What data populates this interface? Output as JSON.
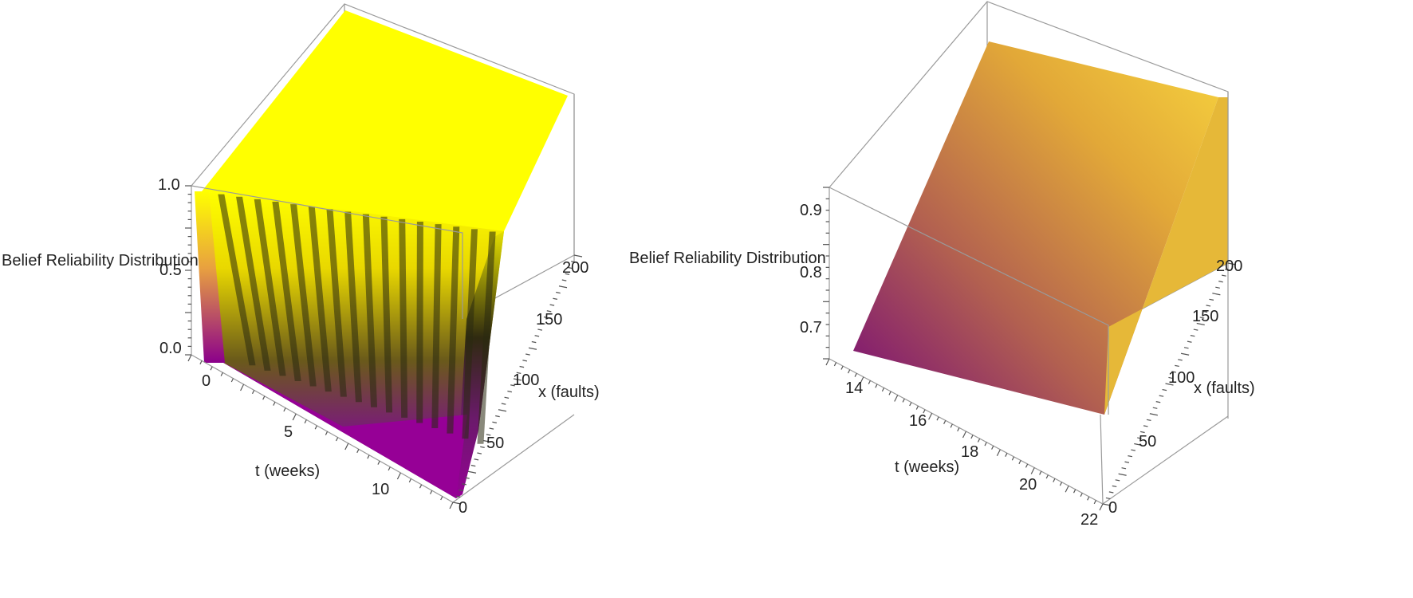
{
  "chart_data": [
    {
      "type": "surface3d",
      "zlabel": "Belief Reliability Distribution",
      "xlabel": "t (weeks)",
      "ylabel": "x (faults)",
      "x_ticks": [
        "0",
        "5",
        "10"
      ],
      "y_ticks": [
        "0",
        "50",
        "100",
        "150",
        "200"
      ],
      "z_ticks": [
        "0.0",
        "0.5",
        "1.0"
      ],
      "xlim": [
        0,
        13
      ],
      "ylim": [
        0,
        220
      ],
      "zlim": [
        0,
        1
      ],
      "color_low": "#8b008b",
      "color_mid": "#3a3a10",
      "color_high": "#ffff00",
      "surface": "steep transition from 0 to 1 with oscillating ridges"
    },
    {
      "type": "surface3d",
      "zlabel": "Belief Reliability Distribution",
      "xlabel": "t (weeks)",
      "ylabel": "x (faults)",
      "x_ticks": [
        "14",
        "16",
        "18",
        "20",
        "22"
      ],
      "y_ticks": [
        "0",
        "50",
        "100",
        "150",
        "200"
      ],
      "z_ticks": [
        "0.7",
        "0.8",
        "0.9"
      ],
      "xlim": [
        13,
        22
      ],
      "ylim": [
        0,
        220
      ],
      "zlim": [
        0.63,
        0.95
      ],
      "color_low": "#7a0c7a",
      "color_mid": "#c8803a",
      "color_high": "#f5c63a",
      "surface": "smooth increasing plane"
    }
  ]
}
